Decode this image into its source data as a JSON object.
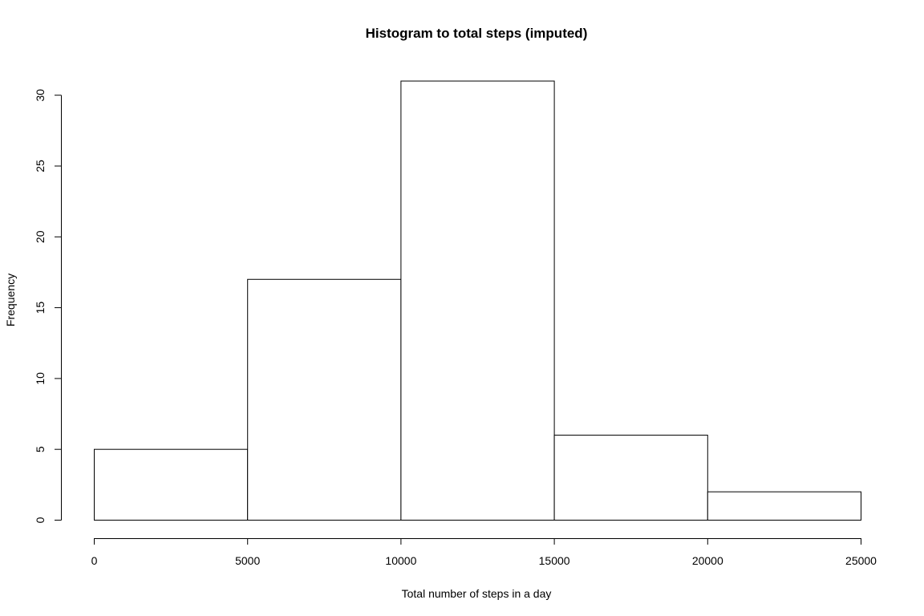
{
  "chart_data": {
    "type": "bar",
    "title": "Histogram to total steps (imputed)",
    "xlabel": "Total number of steps in a day",
    "ylabel": "Frequency",
    "bins": [
      {
        "start": 0,
        "end": 5000,
        "count": 5
      },
      {
        "start": 5000,
        "end": 10000,
        "count": 17
      },
      {
        "start": 10000,
        "end": 15000,
        "count": 31
      },
      {
        "start": 15000,
        "end": 20000,
        "count": 6
      },
      {
        "start": 20000,
        "end": 25000,
        "count": 2
      }
    ],
    "xlim": [
      0,
      25000
    ],
    "ylim": [
      0,
      31
    ],
    "x_ticks": [
      "0",
      "5000",
      "10000",
      "15000",
      "20000",
      "25000"
    ],
    "y_ticks": [
      "0",
      "5",
      "10",
      "15",
      "20",
      "25",
      "30"
    ],
    "x_tick_values": [
      0,
      5000,
      10000,
      15000,
      20000,
      25000
    ],
    "y_tick_values": [
      0,
      5,
      10,
      15,
      20,
      25,
      30
    ],
    "grid": false,
    "colors": {
      "bar_fill": "#ffffff",
      "bar_stroke": "#000000"
    }
  }
}
